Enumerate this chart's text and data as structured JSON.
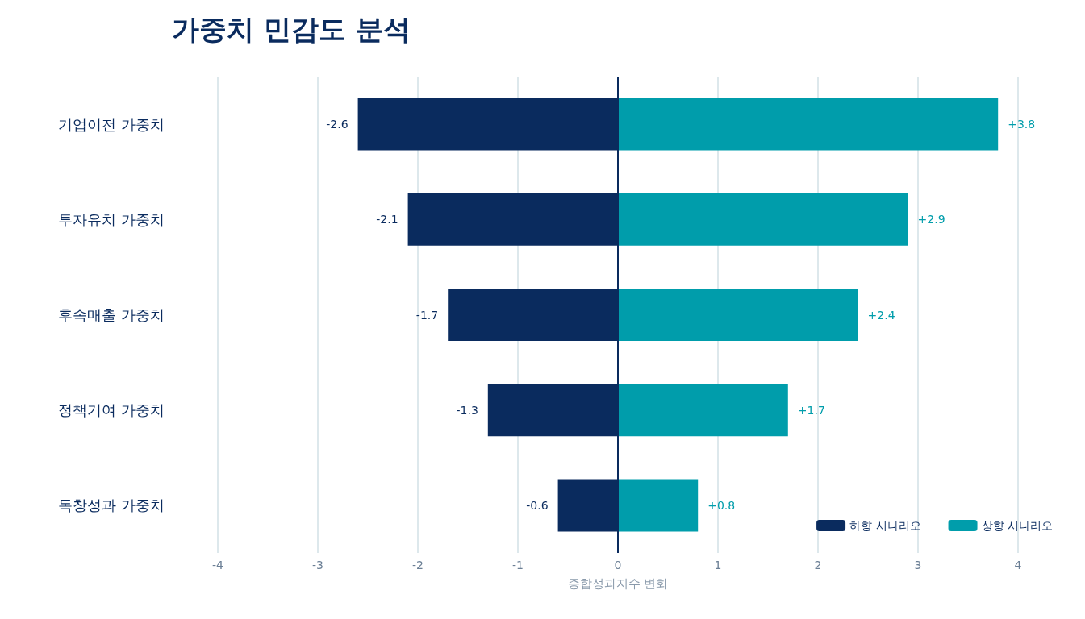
{
  "chart_data": {
    "type": "bar",
    "title": "가중치 민감도 분석",
    "xlabel": "종합성과지수 변화",
    "orientation": "horizontal",
    "stacked": true,
    "categories": [
      "기업이전 가중치",
      "투자유치 가중치",
      "후속매출 가중치",
      "정책기여 가중치",
      "독창성과 가중치"
    ],
    "series": [
      {
        "name": "하향 시나리오",
        "color": "#0a2b5e",
        "values": [
          -2.6,
          -2.1,
          -1.7,
          -1.3,
          -0.6
        ],
        "value_labels": [
          "-2.6",
          "-2.1",
          "-1.7",
          "-1.3",
          "-0.6"
        ]
      },
      {
        "name": "상향 시나리오",
        "color": "#009dab",
        "values": [
          3.8,
          2.9,
          2.4,
          1.7,
          0.8
        ],
        "value_labels": [
          "+3.8",
          "+2.9",
          "+2.4",
          "+1.7",
          "+0.8"
        ]
      }
    ],
    "xlim": [
      -4,
      4
    ],
    "xticks": [
      -4,
      -3,
      -2,
      -1,
      0,
      1,
      2,
      3,
      4
    ],
    "ref_lines": [
      {
        "axis": "x",
        "value": 0,
        "color": "#0a2b5e"
      }
    ],
    "grid": "x",
    "legend": "bottom right"
  }
}
